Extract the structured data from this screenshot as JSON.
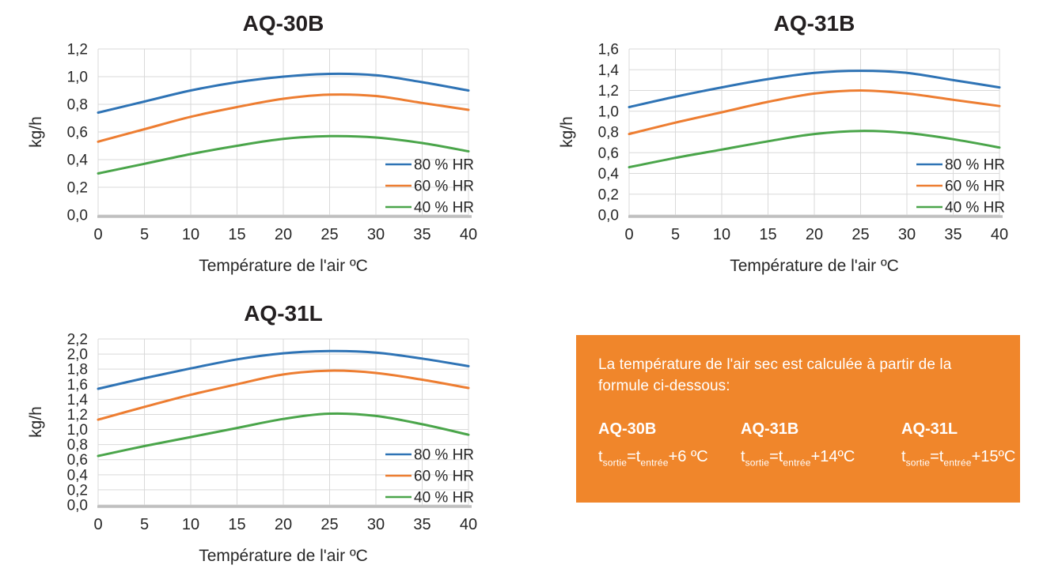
{
  "colors": {
    "blue": "#2E73B5",
    "orange": "#ED7D31",
    "green": "#4AA54A",
    "grid": "#D9D9D9",
    "axis": "#BFBFBF",
    "text": "#262626",
    "title": "#231F20",
    "box_bg": "#F0862B",
    "box_text": "#FFFFFF"
  },
  "chart_data": [
    {
      "type": "line",
      "title": "AQ-30B",
      "xlabel": "Température de l'air ºC",
      "ylabel": "kg/h",
      "x": [
        0,
        5,
        10,
        15,
        20,
        25,
        30,
        35,
        40
      ],
      "xlim": [
        0,
        40
      ],
      "ylim": [
        0,
        1.2
      ],
      "ytick_step": 0.2,
      "grid": true,
      "legend_position": "bottom-right",
      "series": [
        {
          "name": "80 % HR",
          "color_key": "blue",
          "values": [
            0.74,
            0.82,
            0.9,
            0.96,
            1.0,
            1.02,
            1.01,
            0.96,
            0.9
          ]
        },
        {
          "name": "60 % HR",
          "color_key": "orange",
          "values": [
            0.53,
            0.62,
            0.71,
            0.78,
            0.84,
            0.87,
            0.86,
            0.81,
            0.76
          ]
        },
        {
          "name": "40 % HR",
          "color_key": "green",
          "values": [
            0.3,
            0.37,
            0.44,
            0.5,
            0.55,
            0.57,
            0.56,
            0.52,
            0.46
          ]
        }
      ]
    },
    {
      "type": "line",
      "title": "AQ-31B",
      "xlabel": "Température de l'air ºC",
      "ylabel": "kg/h",
      "x": [
        0,
        5,
        10,
        15,
        20,
        25,
        30,
        35,
        40
      ],
      "xlim": [
        0,
        40
      ],
      "ylim": [
        0,
        1.6
      ],
      "ytick_step": 0.2,
      "grid": true,
      "legend_position": "bottom-right",
      "series": [
        {
          "name": "80 % HR",
          "color_key": "blue",
          "values": [
            1.04,
            1.14,
            1.23,
            1.31,
            1.37,
            1.39,
            1.37,
            1.3,
            1.23
          ]
        },
        {
          "name": "60 % HR",
          "color_key": "orange",
          "values": [
            0.78,
            0.89,
            0.99,
            1.09,
            1.17,
            1.2,
            1.17,
            1.11,
            1.05
          ]
        },
        {
          "name": "40 % HR",
          "color_key": "green",
          "values": [
            0.46,
            0.55,
            0.63,
            0.71,
            0.78,
            0.81,
            0.79,
            0.73,
            0.65
          ]
        }
      ]
    },
    {
      "type": "line",
      "title": "AQ-31L",
      "xlabel": "Température de l'air ºC",
      "ylabel": "kg/h",
      "x": [
        0,
        5,
        10,
        15,
        20,
        25,
        30,
        35,
        40
      ],
      "xlim": [
        0,
        40
      ],
      "ylim": [
        0,
        2.2
      ],
      "ytick_step": 0.2,
      "grid": true,
      "legend_position": "bottom-right",
      "series": [
        {
          "name": "80 % HR",
          "color_key": "blue",
          "values": [
            1.54,
            1.68,
            1.81,
            1.93,
            2.01,
            2.04,
            2.02,
            1.94,
            1.84
          ]
        },
        {
          "name": "60 % HR",
          "color_key": "orange",
          "values": [
            1.13,
            1.3,
            1.46,
            1.6,
            1.73,
            1.78,
            1.75,
            1.66,
            1.55
          ]
        },
        {
          "name": "40 % HR",
          "color_key": "green",
          "values": [
            0.65,
            0.78,
            0.9,
            1.02,
            1.14,
            1.21,
            1.18,
            1.07,
            0.93
          ]
        }
      ]
    }
  ],
  "info_box": {
    "intro": "La température de l'air sec est calculée à partir de la formule ci-dessous:",
    "models": [
      {
        "name": "AQ-30B",
        "t": "t",
        "t_out_sub": "sortie",
        "mid": "=t",
        "t_in_sub": "entrée",
        "suffix": "+6 ºC"
      },
      {
        "name": "AQ-31B",
        "t": "t",
        "t_out_sub": "sortie",
        "mid": "=t",
        "t_in_sub": "entrée",
        "suffix": "+14ºC"
      },
      {
        "name": "AQ-31L",
        "t": "t",
        "t_out_sub": "sortie",
        "mid": "=t",
        "t_in_sub": "entrée",
        "suffix": "+15ºC"
      }
    ]
  }
}
